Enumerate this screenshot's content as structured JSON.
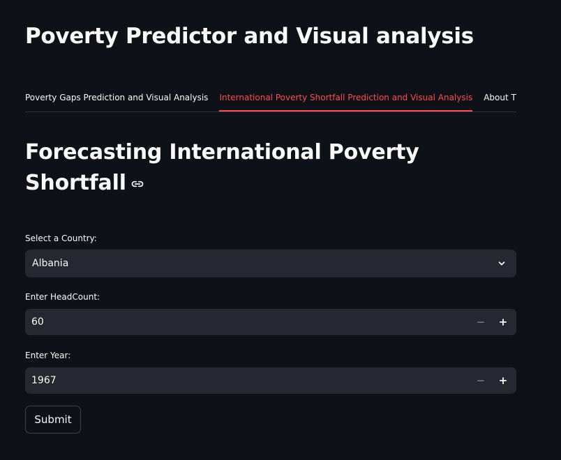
{
  "app": {
    "title": "Poverty Predictor and Visual analysis"
  },
  "tabs": [
    {
      "label": "Poverty Gaps Prediction and Visual Analysis",
      "active": false
    },
    {
      "label": "International Poverty Shortfall Prediction and Visual Analysis",
      "active": true
    },
    {
      "label": "About The",
      "active": false
    }
  ],
  "main": {
    "heading": "Forecasting International Poverty Shortfall",
    "country": {
      "label": "Select a Country:",
      "value": "Albania"
    },
    "headcount": {
      "label": "Enter HeadCount:",
      "value": "60",
      "minus": "−",
      "plus": "+"
    },
    "year": {
      "label": "Enter Year:",
      "value": "1967",
      "minus": "−",
      "plus": "+"
    },
    "submit_label": "Submit"
  },
  "colors": {
    "background": "#0e1117",
    "accent": "#ff4b4b",
    "input_bg": "#262730"
  }
}
